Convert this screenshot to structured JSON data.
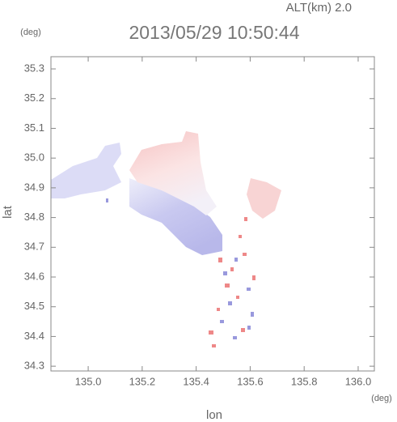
{
  "chart_data": {
    "type": "map",
    "title": "2013/05/29 10:50:44",
    "alt_label": "ALT(km) 2.0",
    "y_unit": "(deg)",
    "x_unit": "(deg)",
    "xlabel": "lon",
    "ylabel": "lat",
    "xlim": [
      134.862,
      136.06
    ],
    "ylim": [
      34.284,
      35.341
    ],
    "xticks": [
      {
        "value": 135,
        "label": "135.0"
      },
      135.2,
      135.4,
      135.6,
      135.8,
      {
        "value": 136,
        "label": "136.0"
      }
    ],
    "yticks": [
      35.3,
      35.2,
      35.1,
      {
        "value": 35,
        "label": "35.0"
      },
      34.9,
      34.8,
      34.7,
      34.6,
      34.5,
      34.4,
      34.3
    ]
  }
}
